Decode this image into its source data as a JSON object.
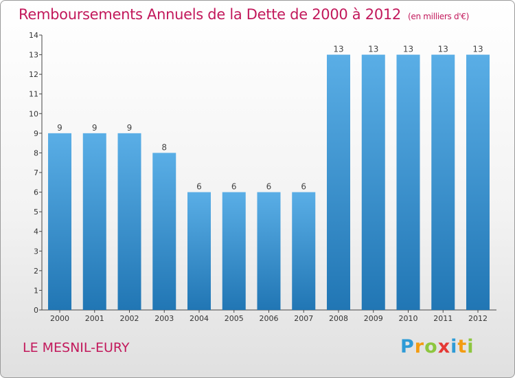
{
  "title": "Remboursements Annuels de la Dette de 2000 à 2012",
  "subtitle": "(en milliers d'€)",
  "town": "LE MESNIL-EURY",
  "logo": {
    "letters": [
      "P",
      "r",
      "o",
      "x",
      "i",
      "t",
      "i"
    ],
    "colors": [
      "#2e9bd6",
      "#f39c12",
      "#8dc63f",
      "#e53935",
      "#2e9bd6",
      "#f39c12",
      "#8dc63f"
    ]
  },
  "colors": {
    "bar_light": "#5aaee6",
    "bar_dark": "#2176b4",
    "title": "#c2185b"
  },
  "chart_data": {
    "type": "bar",
    "title": "Remboursements Annuels de la Dette de 2000 à 2012",
    "subtitle": "(en milliers d'€)",
    "xlabel": "",
    "ylabel": "",
    "categories": [
      "2000",
      "2001",
      "2002",
      "2003",
      "2004",
      "2005",
      "2006",
      "2007",
      "2008",
      "2009",
      "2010",
      "2011",
      "2012"
    ],
    "values": [
      9,
      9,
      9,
      8,
      6,
      6,
      6,
      6,
      13,
      13,
      13,
      13,
      13
    ],
    "data_labels": [
      "9",
      "9",
      "9",
      "8",
      "6",
      "6",
      "6",
      "6",
      "13",
      "13",
      "13",
      "13",
      "13"
    ],
    "ylim": [
      0,
      14
    ],
    "yticks": [
      "0",
      "1",
      "2",
      "3",
      "4",
      "5",
      "6",
      "7",
      "8",
      "9",
      "10",
      "11",
      "12",
      "13",
      "14"
    ],
    "grid": false,
    "legend": "none"
  }
}
